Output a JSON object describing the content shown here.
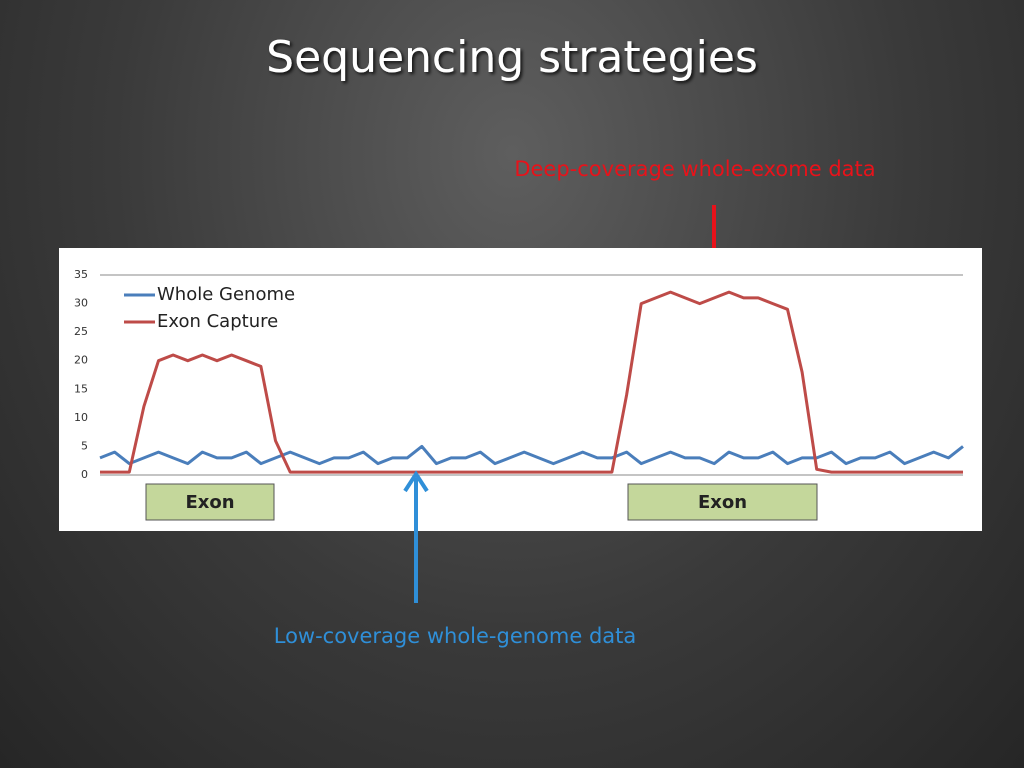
{
  "title": "Sequencing strategies",
  "annotations": [
    {
      "text": "Deep-coverage whole-exome data",
      "color": "#e8121a"
    },
    {
      "text": "Low-coverage whole-genome data",
      "color": "#2f8fd8"
    }
  ],
  "chart_data": {
    "type": "line",
    "categories": [
      null,
      null,
      null,
      null,
      null,
      null,
      null,
      null,
      null,
      null,
      null,
      null,
      null,
      null,
      null,
      null,
      null,
      null,
      null,
      null,
      null,
      null,
      null,
      null,
      null,
      null,
      null,
      null,
      null,
      null,
      null,
      null,
      null,
      null,
      null,
      null,
      null,
      null,
      null,
      null,
      null,
      null,
      null,
      null,
      null,
      null,
      null,
      null,
      null,
      null,
      null,
      null,
      null,
      null,
      null,
      null,
      null,
      null,
      null,
      null
    ],
    "series": [
      {
        "name": "Whole Genome",
        "color": "#4a7ebb",
        "values": [
          3,
          4,
          2,
          3,
          4,
          3,
          2,
          4,
          3,
          3,
          4,
          2,
          3,
          4,
          3,
          2,
          3,
          3,
          4,
          2,
          3,
          3,
          5,
          2,
          3,
          3,
          4,
          2,
          3,
          4,
          3,
          2,
          3,
          4,
          3,
          3,
          4,
          2,
          3,
          4,
          3,
          3,
          2,
          4,
          3,
          3,
          4,
          2,
          3,
          3,
          4,
          2,
          3,
          3,
          4,
          2,
          3,
          4,
          3,
          5
        ]
      },
      {
        "name": "Exon Capture",
        "color": "#be4b48",
        "values": [
          0.5,
          0.5,
          0.5,
          12,
          20,
          21,
          20,
          21,
          20,
          21,
          20,
          19,
          6,
          0.5,
          0.5,
          0.5,
          0.5,
          0.5,
          0.5,
          0.5,
          0.5,
          0.5,
          0.5,
          0.5,
          0.5,
          0.5,
          0.5,
          0.5,
          0.5,
          0.5,
          0.5,
          0.5,
          0.5,
          0.5,
          0.5,
          0.5,
          14,
          30,
          31,
          32,
          31,
          30,
          31,
          32,
          31,
          31,
          30,
          29,
          18,
          1,
          0.5,
          0.5,
          0.5,
          0.5,
          0.5,
          0.5,
          0.5,
          0.5,
          0.5,
          0.5
        ]
      }
    ],
    "ylim": [
      0,
      35
    ],
    "yticks": [
      0,
      5,
      10,
      15,
      20,
      25,
      30,
      35
    ],
    "legend": "upper left",
    "region_labels": [
      "Exon",
      "Exon"
    ]
  }
}
